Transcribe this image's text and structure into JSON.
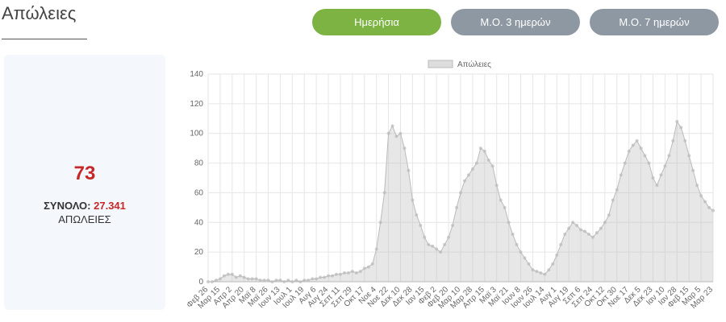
{
  "header": {
    "title": "Απώλειες"
  },
  "buttons": [
    "Ημερήσια",
    "Μ.Ο. 3 ημερών",
    "Μ.Ο. 7 ημερών"
  ],
  "summary": {
    "today": "73",
    "total_label": "ΣΥΝΟΛΟ:",
    "total_value": "27.341",
    "caption": "ΑΠΩΛΕΙΕΣ"
  },
  "chart_data": {
    "type": "line",
    "categories": [
      "Φεβ 26",
      null,
      null,
      "Μαρ 15",
      null,
      null,
      "Απρ 2",
      null,
      null,
      "Απρ 20",
      null,
      null,
      "Μαϊ 8",
      null,
      null,
      "Μαϊ 26",
      null,
      null,
      "Ιουν 13",
      null,
      null,
      "Ιουλ 1",
      null,
      null,
      "Ιουλ 19",
      null,
      null,
      "Αυγ 6",
      null,
      null,
      "Αυγ 24",
      null,
      null,
      "Σεπ 11",
      null,
      null,
      "Σεπ 29",
      null,
      null,
      "Οκτ 17",
      null,
      null,
      "Νοε 4",
      null,
      null,
      "Νοε 22",
      null,
      null,
      "Δεκ 10",
      null,
      null,
      "Δεκ 28",
      null,
      null,
      "Ιαν 15",
      null,
      null,
      "Φεβ 2",
      null,
      null,
      "Φεβ 20",
      null,
      null,
      "Μαρ 10",
      null,
      null,
      "Μαρ 28",
      null,
      null,
      "Απρ 15",
      null,
      null,
      "Μαϊ 3",
      null,
      null,
      "Μαϊ 21",
      null,
      null,
      "Ιουν 8",
      null,
      null,
      "Ιουν 26",
      null,
      null,
      "Ιουλ 14",
      null,
      null,
      "Αυγ 1",
      null,
      null,
      "Αυγ 19",
      null,
      null,
      "Σεπ 6",
      null,
      null,
      "Σεπ 24",
      null,
      null,
      "Οκτ 12",
      null,
      null,
      "Οκτ 30",
      null,
      null,
      "Νοε 17",
      null,
      null,
      "Δεκ 5",
      null,
      null,
      "Δεκ 23",
      null,
      null,
      "Ιαν 10",
      null,
      null,
      "Ιαν 28",
      null,
      null,
      "Φεβ 15",
      null,
      null,
      "Μαρ 5",
      null,
      null,
      "Μαρ 23"
    ],
    "series": [
      {
        "name": "Απώλειες",
        "color": "#bbbbbb",
        "values": [
          0,
          0,
          1,
          2,
          4,
          5,
          5,
          3,
          4,
          3,
          2,
          2,
          2,
          1,
          1,
          1,
          0,
          1,
          1,
          0,
          1,
          0,
          1,
          0,
          1,
          1,
          2,
          2,
          3,
          3,
          4,
          4,
          5,
          5,
          6,
          6,
          7,
          6,
          7,
          9,
          10,
          12,
          22,
          40,
          60,
          100,
          105,
          98,
          100,
          90,
          75,
          55,
          45,
          38,
          30,
          25,
          24,
          22,
          20,
          25,
          30,
          38,
          50,
          60,
          68,
          72,
          76,
          80,
          90,
          88,
          82,
          78,
          65,
          55,
          50,
          40,
          32,
          25,
          20,
          16,
          12,
          8,
          7,
          6,
          5,
          8,
          12,
          18,
          25,
          32,
          36,
          40,
          38,
          35,
          34,
          32,
          30,
          33,
          36,
          40,
          45,
          55,
          62,
          72,
          80,
          88,
          92,
          95,
          90,
          85,
          80,
          70,
          65,
          72,
          78,
          85,
          95,
          108,
          104,
          95,
          85,
          75,
          65,
          58,
          54,
          50,
          48
        ]
      }
    ],
    "ylim": [
      0,
      140
    ],
    "yticks": [
      0,
      20,
      40,
      60,
      80,
      100,
      120,
      140
    ],
    "grid": true,
    "legend": "top"
  }
}
